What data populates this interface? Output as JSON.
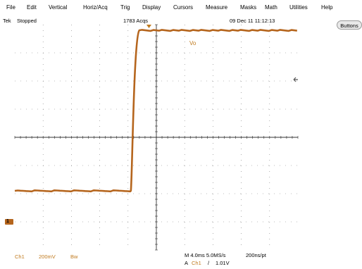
{
  "menu": {
    "items": [
      "File",
      "Edit",
      "Vertical",
      "Horiz/Acq",
      "Trig",
      "Display",
      "Cursors",
      "Measure",
      "Masks",
      "Math",
      "Utilities",
      "Help"
    ]
  },
  "status": {
    "brand": "Tek",
    "run_state": "Stopped",
    "acquisitions": "1783 Acqs",
    "datetime": "09 Dec 11 11:12:13"
  },
  "buttons_label": "Buttons",
  "waveform": {
    "label": "Vo",
    "color": "#b5651d",
    "channel_marker": "1",
    "low_level_div": -1.9,
    "high_level_div": 3.8,
    "step_time_div": 4.1
  },
  "bottom": {
    "channel": "Ch1",
    "volts_per_div": "200mV",
    "bandwidth": "Bw",
    "timebase": "M 4.0ms 5.0MS/s",
    "resolution": "200ns/pt",
    "trigger_source_prefix": "A",
    "trigger_channel": "Ch1",
    "trigger_slope": "/",
    "trigger_level": "1.01V"
  },
  "colors": {
    "trace": "#b5651d",
    "channel_text": "#c07a1e",
    "grid": "#7a7a7a"
  }
}
